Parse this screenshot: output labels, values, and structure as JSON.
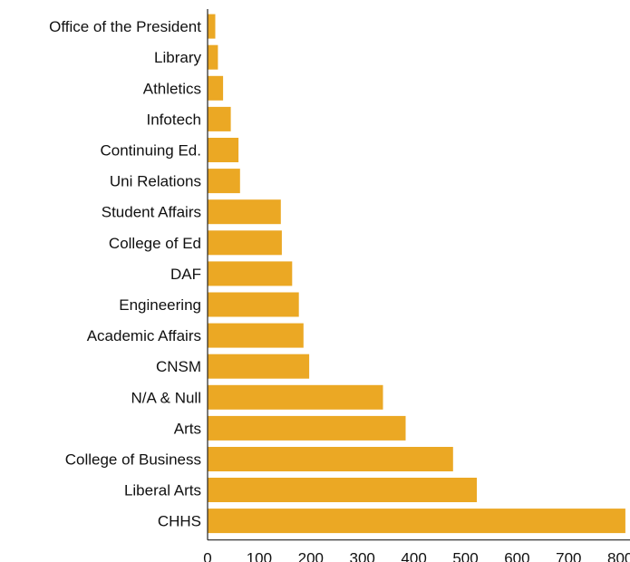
{
  "chart_data": {
    "type": "bar",
    "orientation": "horizontal",
    "title": "",
    "xlabel": "",
    "ylabel": "",
    "categories": [
      "Office of the President",
      "Library",
      "Athletics",
      "Infotech",
      "Continuing Ed.",
      "Uni Relations",
      "Student Affairs",
      "College of Ed",
      "DAF",
      "Engineering",
      "Academic Affairs",
      "CNSM",
      "N/A & Null",
      "Arts",
      "College of Business",
      "Liberal Arts",
      "CHHS"
    ],
    "values": [
      15,
      20,
      30,
      45,
      60,
      63,
      142,
      144,
      164,
      177,
      186,
      197,
      340,
      384,
      476,
      522,
      810
    ],
    "xlim": [
      0,
      820
    ],
    "xticks": [
      0,
      100,
      200,
      300,
      400,
      500,
      600,
      700,
      800
    ],
    "grid": false,
    "legend": "none",
    "bar_color": "#EBA824"
  }
}
